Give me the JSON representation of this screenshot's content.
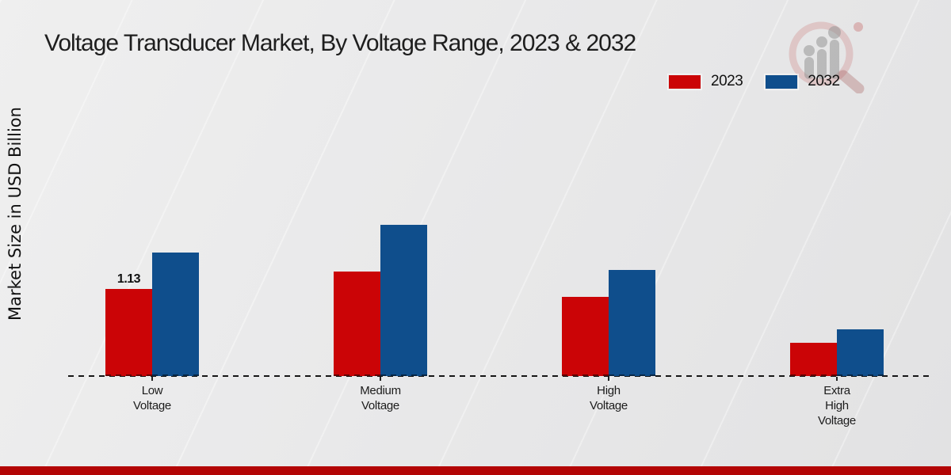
{
  "title": "Voltage Transducer Market, By Voltage Range, 2023 & 2032",
  "y_axis_label": "Market Size in USD Billion",
  "legend": {
    "items": [
      {
        "label": "2023",
        "color": "#cb0406"
      },
      {
        "label": "2032",
        "color": "#0f4e8c"
      }
    ]
  },
  "chart_data": {
    "type": "bar",
    "title": "Voltage Transducer Market, By Voltage Range, 2023 & 2032",
    "xlabel": "",
    "ylabel": "Market Size in USD Billion",
    "categories": [
      "Low Voltage",
      "Medium Voltage",
      "High Voltage",
      "Extra High Voltage"
    ],
    "series": [
      {
        "name": "2023",
        "color": "#cb0406",
        "values": [
          1.13,
          1.36,
          1.03,
          0.43
        ]
      },
      {
        "name": "2032",
        "color": "#0f4e8c",
        "values": [
          1.61,
          1.97,
          1.38,
          0.61
        ]
      }
    ],
    "bar_labels": [
      {
        "series": "2023",
        "category": "Low Voltage",
        "text": "1.13"
      }
    ],
    "ylim": [
      0,
      2.2
    ],
    "grid": false,
    "baseline_style": "dashed",
    "legend_position": "upper-right",
    "y_ticks_visible": false
  },
  "watermark": {
    "name": "magnifier-growth-chart-logo"
  },
  "footer": {
    "band_color": "#b30505"
  }
}
